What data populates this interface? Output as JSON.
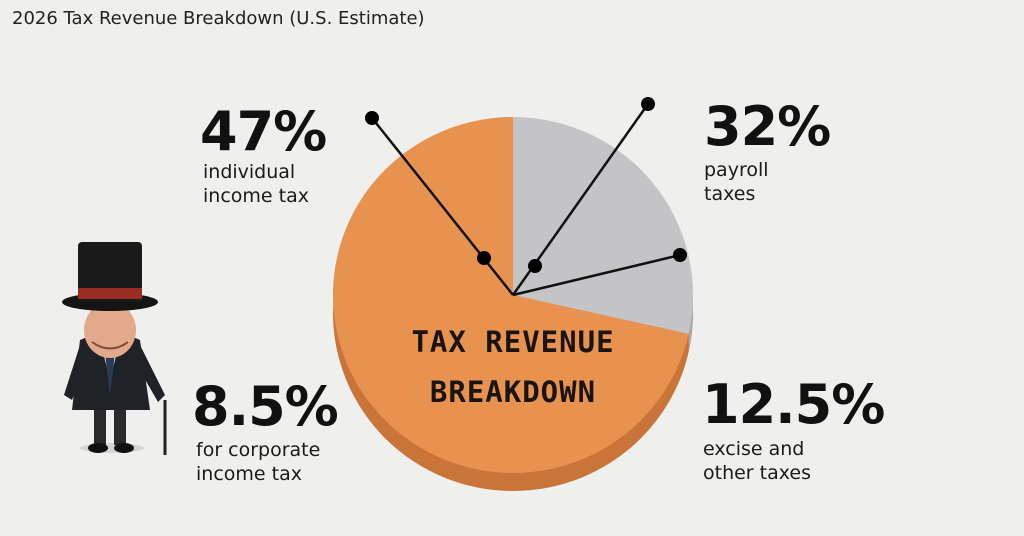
{
  "title": "2026 Tax Revenue Breakdown (U.S. Estimate)",
  "chart_data": {
    "type": "pie",
    "title": "TAX REVENUE BREAKDOWN",
    "slices": [
      {
        "label": "individual income tax",
        "value": 47,
        "display": "47%"
      },
      {
        "label": "payroll taxes",
        "value": 32,
        "display": "32%"
      },
      {
        "label": "excise and other taxes",
        "value": 12.5,
        "display": "12.5%"
      },
      {
        "label": "for corporate income tax",
        "value": 8.5,
        "display": "8.5%"
      }
    ],
    "colors": {
      "orange": "#e8924f",
      "orange_side": "#c9753a",
      "gray": "#c4c4c6",
      "gray_side": "#a9a9ab"
    }
  },
  "labels": {
    "individual_pct": "47%",
    "individual_l1": "individual",
    "individual_l2": "income tax",
    "payroll_pct": "32%",
    "payroll_l1": "payroll",
    "payroll_l2": "taxes",
    "corporate_pct": "8.5%",
    "corporate_l1": "for corporate",
    "corporate_l2": "income tax",
    "excise_pct": "12.5%",
    "excise_l1": "excise and",
    "excise_l2": "other taxes",
    "center_l1": "TAX REVENUE",
    "center_l2": "BREAKDOWN"
  },
  "illustration": "top-hat-tycoon-icon"
}
